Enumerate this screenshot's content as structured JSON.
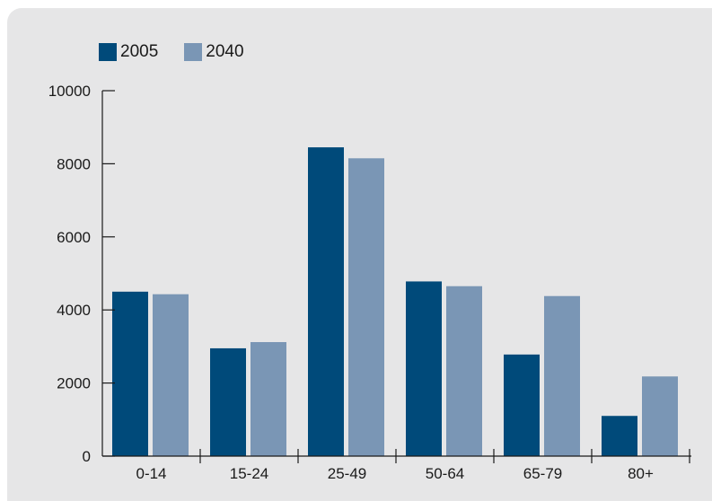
{
  "chart_data": {
    "type": "bar",
    "title": "",
    "xlabel": "",
    "ylabel": "",
    "categories": [
      "0-14",
      "15-24",
      "25-49",
      "50-64",
      "65-79",
      "80+"
    ],
    "series": [
      {
        "name": "2005",
        "color": "#004a7a",
        "values": [
          4500,
          2950,
          8450,
          4780,
          2780,
          1100
        ]
      },
      {
        "name": "2040",
        "color": "#7a96b5",
        "values": [
          4430,
          3120,
          8150,
          4650,
          4380,
          2180
        ]
      }
    ],
    "ylim": [
      0,
      10000
    ],
    "yticks": [
      "0",
      "2000",
      "4000",
      "6000",
      "8000",
      "10000"
    ],
    "grid": false,
    "legend_position": "top-left"
  }
}
